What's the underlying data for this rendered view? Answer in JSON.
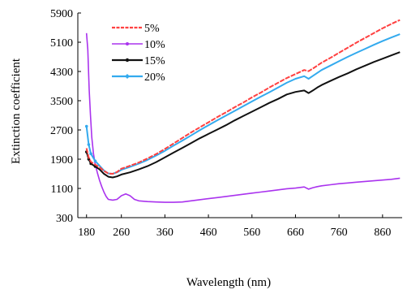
{
  "chart_data": {
    "type": "line",
    "title": "",
    "xlabel": "Wavelength (nm)",
    "ylabel": "Extinction coefficient",
    "xlim": [
      160,
      905
    ],
    "ylim": [
      300,
      5900
    ],
    "xticks": [
      180,
      260,
      360,
      460,
      560,
      660,
      760,
      860
    ],
    "yticks": [
      300,
      1100,
      1900,
      2700,
      3500,
      4300,
      5100,
      5900
    ],
    "legend_position": "top-left",
    "grid": false,
    "series": [
      {
        "name": "5%",
        "color": "#ff4040",
        "marker": "none",
        "x": [
          180,
          185,
          190,
          200,
          210,
          220,
          230,
          240,
          250,
          260,
          280,
          300,
          320,
          340,
          360,
          380,
          400,
          420,
          440,
          460,
          480,
          500,
          520,
          540,
          560,
          580,
          600,
          620,
          640,
          660,
          680,
          690,
          700,
          710,
          720,
          740,
          760,
          780,
          800,
          820,
          840,
          860,
          880,
          900
        ],
        "y": [
          2200,
          1950,
          1830,
          1750,
          1680,
          1580,
          1510,
          1500,
          1550,
          1640,
          1720,
          1810,
          1920,
          2040,
          2180,
          2330,
          2480,
          2630,
          2770,
          2910,
          3050,
          3180,
          3320,
          3450,
          3590,
          3720,
          3860,
          3990,
          4120,
          4230,
          4340,
          4310,
          4380,
          4460,
          4540,
          4670,
          4810,
          4950,
          5090,
          5220,
          5350,
          5480,
          5600,
          5710
        ]
      },
      {
        "name": "10%",
        "color": "#aa33ee",
        "marker": "none",
        "x": [
          180,
          183,
          186,
          189,
          192,
          196,
          200,
          205,
          210,
          215,
          220,
          225,
          230,
          240,
          250,
          260,
          270,
          280,
          290,
          300,
          320,
          340,
          360,
          380,
          400,
          420,
          440,
          460,
          480,
          500,
          520,
          540,
          560,
          580,
          600,
          620,
          640,
          660,
          680,
          690,
          700,
          710,
          720,
          740,
          760,
          780,
          800,
          820,
          840,
          860,
          880,
          900
        ],
        "y": [
          5350,
          4900,
          3800,
          3100,
          2500,
          2050,
          1750,
          1520,
          1320,
          1150,
          1000,
          880,
          800,
          780,
          800,
          900,
          950,
          900,
          800,
          760,
          740,
          730,
          720,
          720,
          730,
          760,
          790,
          820,
          850,
          880,
          910,
          940,
          970,
          1000,
          1030,
          1060,
          1090,
          1110,
          1140,
          1080,
          1120,
          1150,
          1170,
          1200,
          1230,
          1250,
          1270,
          1290,
          1310,
          1330,
          1350,
          1380
        ]
      },
      {
        "name": "15%",
        "color": "#111111",
        "marker": "asterisk",
        "x": [
          180,
          185,
          190,
          200,
          210,
          220,
          230,
          240,
          250,
          260,
          280,
          300,
          320,
          340,
          360,
          380,
          400,
          420,
          440,
          460,
          480,
          500,
          520,
          540,
          560,
          580,
          600,
          620,
          640,
          660,
          680,
          690,
          700,
          710,
          720,
          740,
          760,
          780,
          800,
          820,
          840,
          860,
          880,
          900
        ],
        "y": [
          2100,
          1900,
          1780,
          1700,
          1620,
          1500,
          1420,
          1400,
          1430,
          1480,
          1540,
          1620,
          1710,
          1820,
          1950,
          2080,
          2210,
          2340,
          2470,
          2590,
          2710,
          2830,
          2960,
          3080,
          3200,
          3320,
          3440,
          3550,
          3670,
          3740,
          3780,
          3710,
          3780,
          3860,
          3930,
          4040,
          4150,
          4250,
          4360,
          4460,
          4560,
          4650,
          4740,
          4830
        ]
      },
      {
        "name": "20%",
        "color": "#33aaee",
        "marker": "diamond",
        "x": [
          180,
          185,
          190,
          200,
          210,
          220,
          230,
          240,
          250,
          260,
          280,
          300,
          320,
          340,
          360,
          380,
          400,
          420,
          440,
          460,
          480,
          500,
          520,
          540,
          560,
          580,
          600,
          620,
          640,
          660,
          680,
          690,
          700,
          710,
          720,
          740,
          760,
          780,
          800,
          820,
          840,
          860,
          880,
          900
        ],
        "y": [
          2800,
          2300,
          2050,
          1850,
          1720,
          1590,
          1510,
          1500,
          1540,
          1610,
          1690,
          1780,
          1880,
          2000,
          2130,
          2270,
          2410,
          2550,
          2690,
          2830,
          2960,
          3090,
          3220,
          3350,
          3480,
          3610,
          3730,
          3860,
          3990,
          4100,
          4170,
          4100,
          4180,
          4260,
          4340,
          4460,
          4580,
          4700,
          4810,
          4920,
          5030,
          5130,
          5230,
          5320
        ]
      }
    ]
  }
}
